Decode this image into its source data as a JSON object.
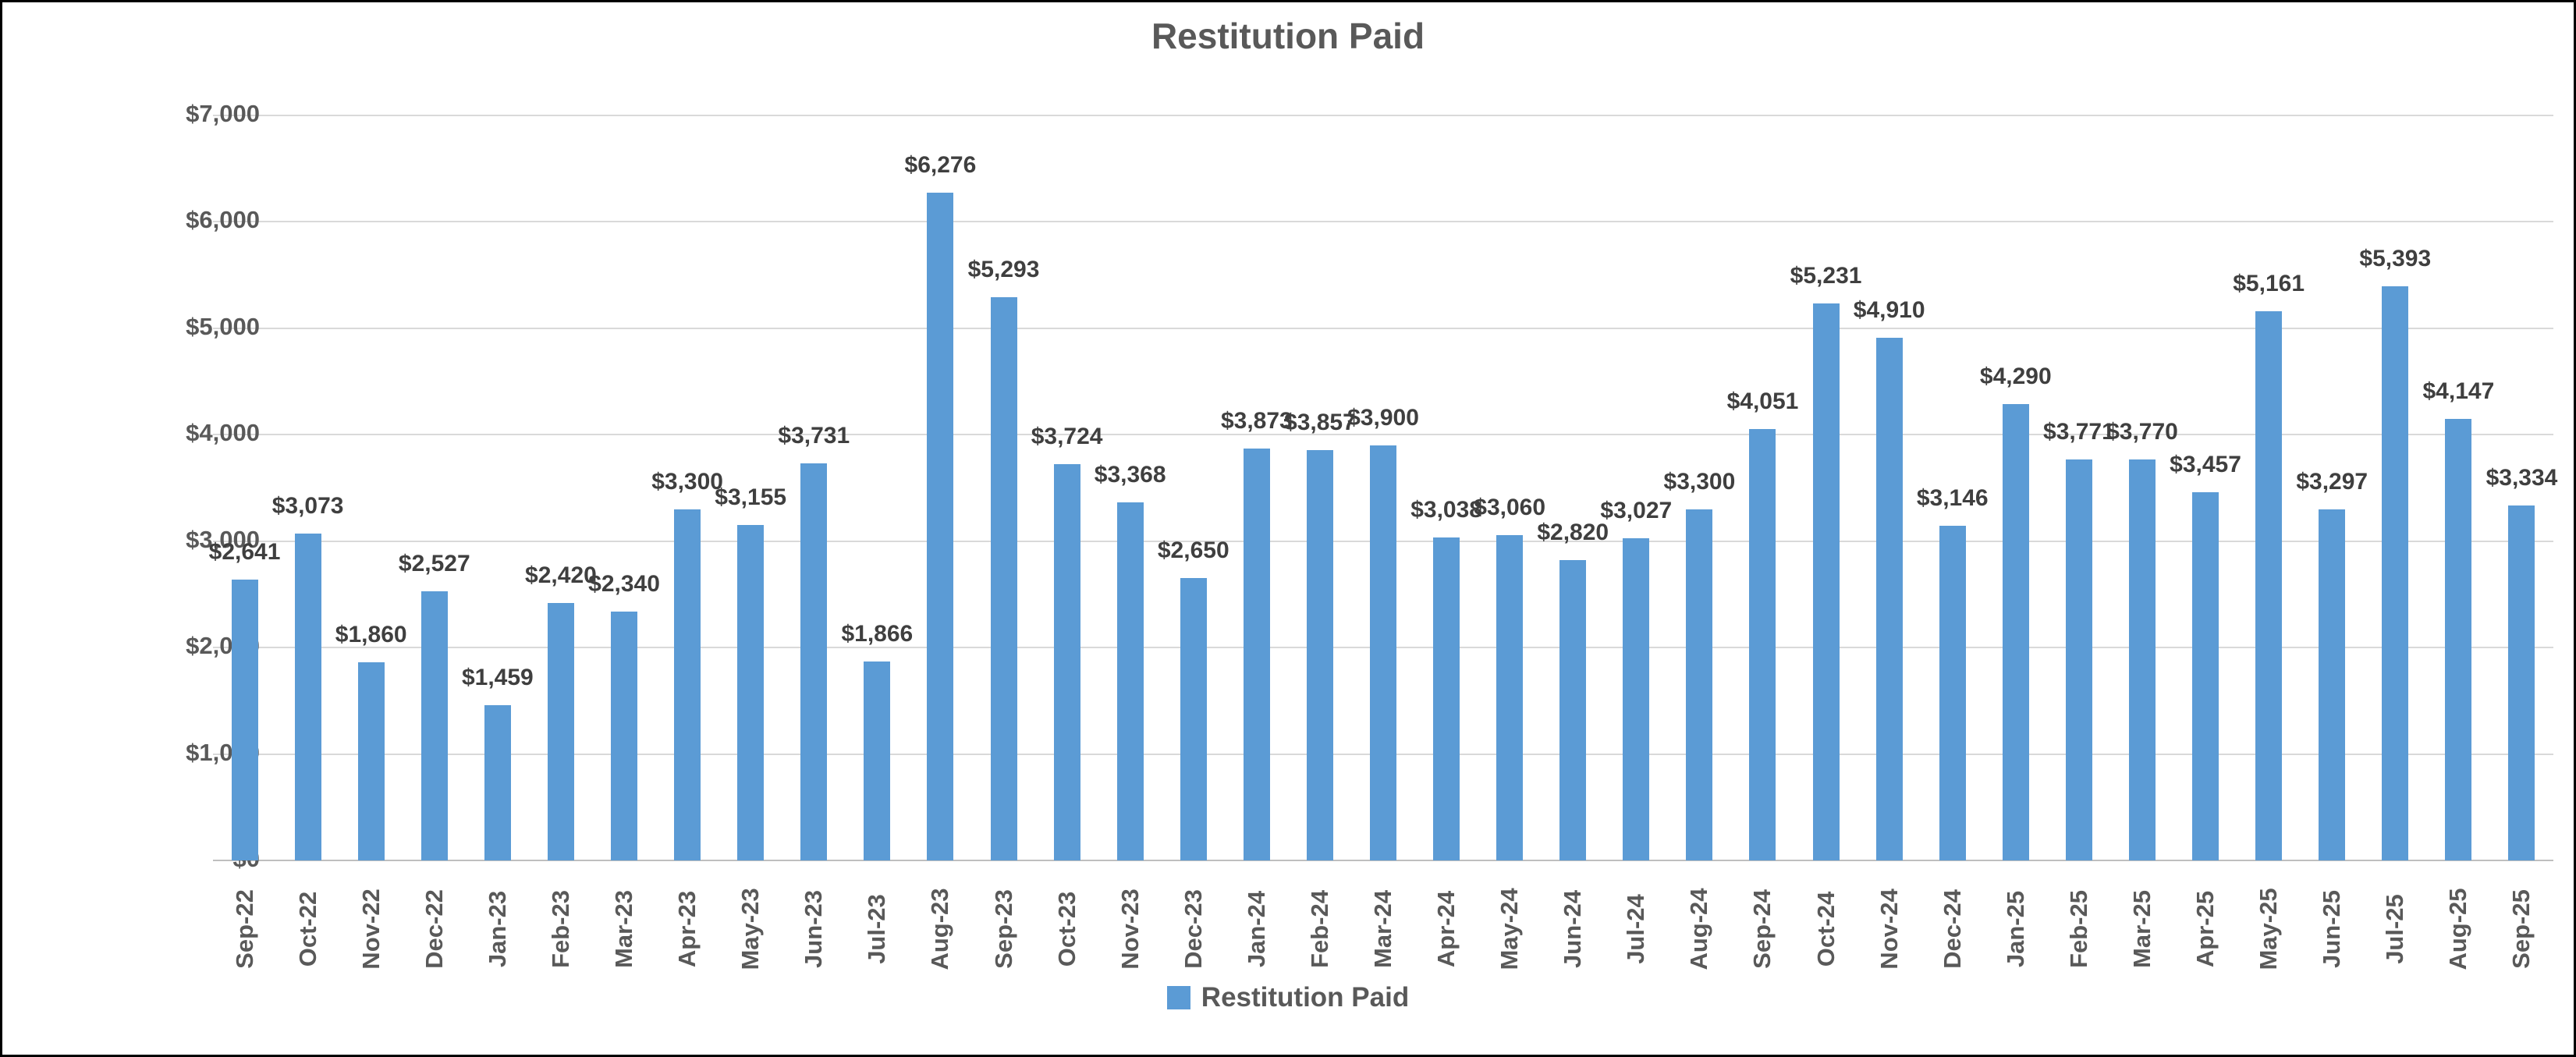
{
  "window": {
    "background": "#ffffff",
    "border_color": "#000000"
  },
  "colors": {
    "bar": "#5B9BD5",
    "title_text": "#595959",
    "axis_text": "#595959",
    "data_label_text": "#3F3F3F",
    "gridline": "#D9D9D9",
    "axis_line": "#BFBFBF"
  },
  "legend": {
    "label": "Restitution Paid",
    "swatch_color": "#5B9BD5"
  },
  "chart_data": {
    "type": "bar",
    "title": "Restitution Paid",
    "series_name": "Restitution Paid",
    "legend_position": "bottom",
    "grid": "horizontal",
    "ylim": [
      0,
      7000
    ],
    "categories": [
      "Sep-22",
      "Oct-22",
      "Nov-22",
      "Dec-22",
      "Jan-23",
      "Feb-23",
      "Mar-23",
      "Apr-23",
      "May-23",
      "Jun-23",
      "Jul-23",
      "Aug-23",
      "Sep-23",
      "Oct-23",
      "Nov-23",
      "Dec-23",
      "Jan-24",
      "Feb-24",
      "Mar-24",
      "Apr-24",
      "May-24",
      "Jun-24",
      "Jul-24",
      "Aug-24",
      "Sep-24",
      "Oct-24",
      "Nov-24",
      "Dec-24",
      "Jan-25",
      "Feb-25",
      "Mar-25",
      "Apr-25",
      "May-25",
      "Jun-25",
      "Jul-25",
      "Aug-25",
      "Sep-25"
    ],
    "values": [
      2641,
      3073,
      1860,
      2527,
      1459,
      2420,
      2340,
      3300,
      3155,
      3731,
      1866,
      6276,
      5293,
      3724,
      3368,
      2650,
      3873,
      3857,
      3900,
      3038,
      3060,
      2820,
      3027,
      3300,
      4051,
      5231,
      4910,
      3146,
      4290,
      3771,
      3770,
      3457,
      5161,
      3297,
      5393,
      4147,
      3334
    ],
    "data_labels": [
      "$2,641",
      "$3,073",
      "$1,860",
      "$2,527",
      "$1,459",
      "$2,420",
      "$2,340",
      "$3,300",
      "$3,155",
      "$3,731",
      "$1,866",
      "$6,276",
      "$5,293",
      "$3,724",
      "$3,368",
      "$2,650",
      "$3,873",
      "$3,857",
      "$3,900",
      "$3,038",
      "$3,060",
      "$2,820",
      "$3,027",
      "$3,300",
      "$4,051",
      "$5,231",
      "$4,910",
      "$3,146",
      "$4,290",
      "$3,771",
      "$3,770",
      "$3,457",
      "$5,161",
      "$3,297",
      "$5,393",
      "$4,147",
      "$3,334"
    ],
    "y_ticks": [
      {
        "value": 0,
        "label": "$0"
      },
      {
        "value": 1000,
        "label": "$1,000"
      },
      {
        "value": 2000,
        "label": "$2,000"
      },
      {
        "value": 3000,
        "label": "$3,000"
      },
      {
        "value": 4000,
        "label": "$4,000"
      },
      {
        "value": 5000,
        "label": "$5,000"
      },
      {
        "value": 6000,
        "label": "$6,000"
      },
      {
        "value": 7000,
        "label": "$7,000"
      }
    ]
  }
}
